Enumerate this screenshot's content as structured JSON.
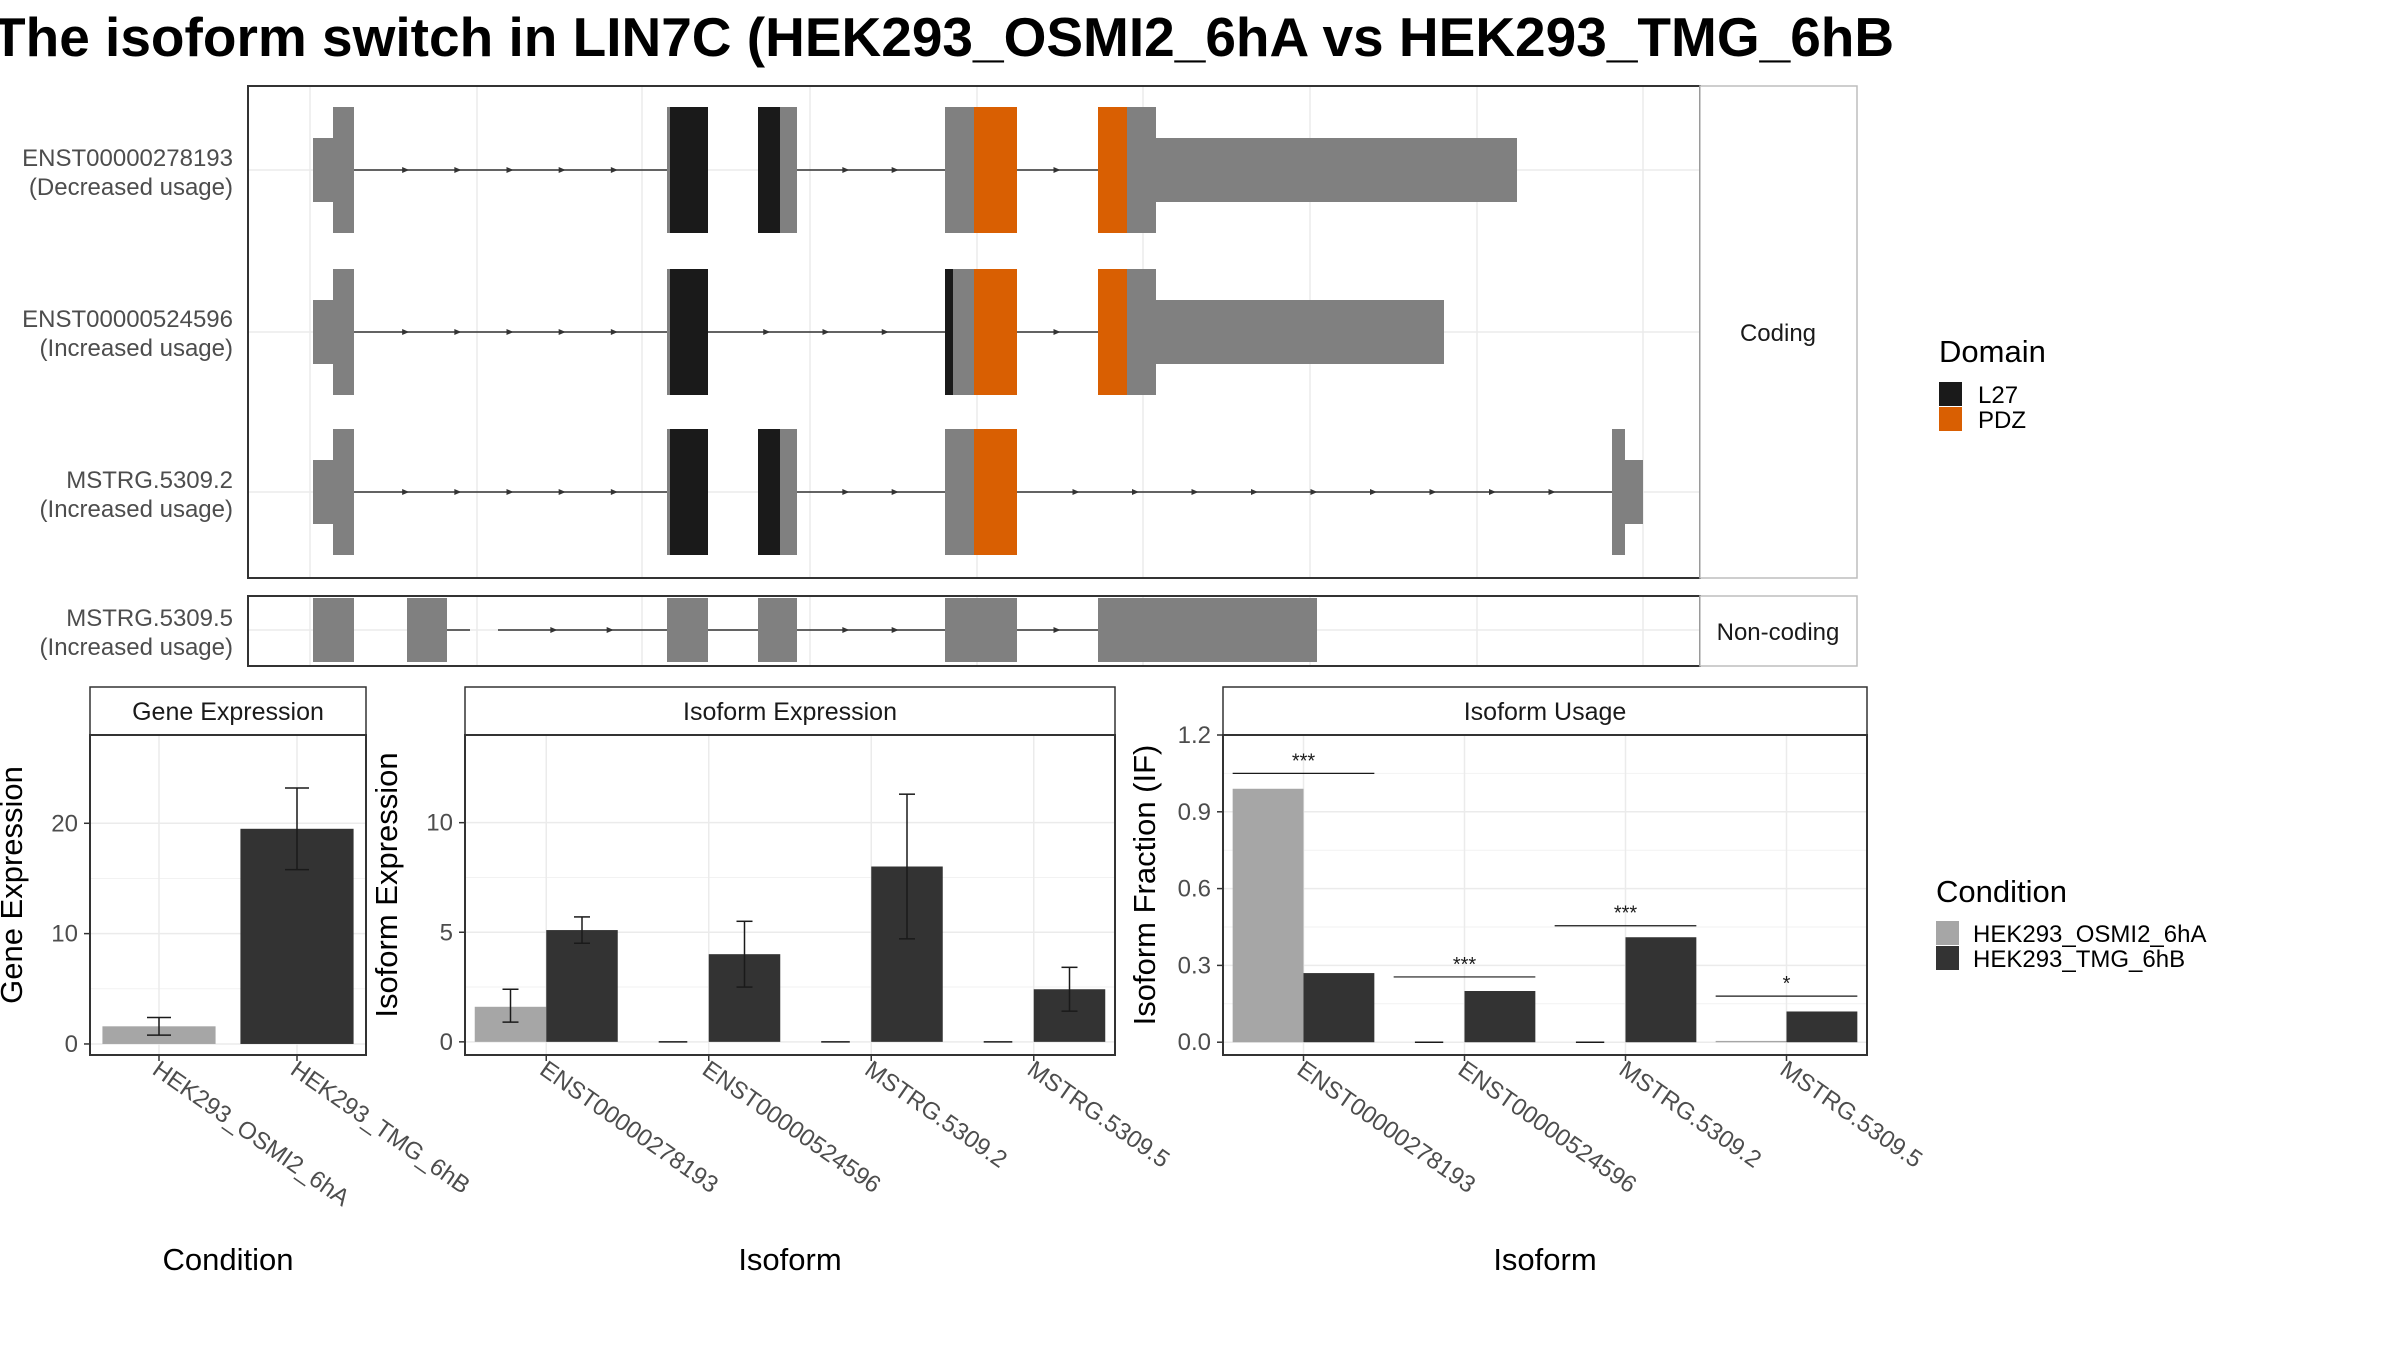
{
  "title": "The isoform switch in LIN7C (HEK293_OSMI2_6hA vs HEK293_TMG_6hB",
  "colors": {
    "exon": "#808080",
    "L27": "#1a1a1a",
    "PDZ": "#d95f02",
    "cond1": "#a6a6a6",
    "cond2": "#333333",
    "grid": "#ebebeb",
    "panel_border": "#333333",
    "strip_border": "#bdbdbd"
  },
  "structure": {
    "facets": [
      "Coding",
      "Non-coding"
    ],
    "transcripts": [
      {
        "id": "ENST00000278193",
        "usage": "(Decreased usage)",
        "facet": "Coding"
      },
      {
        "id": "ENST00000524596",
        "usage": "(Increased usage)",
        "facet": "Coding"
      },
      {
        "id": "MSTRG.5309.2",
        "usage": "(Increased usage)",
        "facet": "Coding"
      },
      {
        "id": "MSTRG.5309.5",
        "usage": "(Increased usage)",
        "facet": "Non-coding"
      }
    ],
    "legend_title": "Domain",
    "legend_items": [
      {
        "label": "L27",
        "color": "#1a1a1a"
      },
      {
        "label": "PDZ",
        "color": "#d95f02"
      }
    ]
  },
  "chart_data": [
    {
      "type": "bar",
      "strip": "Gene Expression",
      "xlabel": "Condition",
      "ylabel": "Gene Expression",
      "categories": [
        "HEK293_OSMI2_6hA",
        "HEK293_TMG_6hB"
      ],
      "ylim": [
        -1,
        28
      ],
      "yticks": [
        0,
        10,
        20
      ],
      "series": [
        {
          "name": "HEK293_OSMI2_6hA",
          "values": [
            1.6,
            null
          ],
          "errors": [
            [
              0.8,
              2.4
            ],
            null
          ]
        },
        {
          "name": "HEK293_TMG_6hB",
          "values": [
            null,
            19.5
          ],
          "errors": [
            null,
            [
              15.8,
              23.2
            ]
          ]
        }
      ]
    },
    {
      "type": "bar",
      "strip": "Isoform Expression",
      "xlabel": "Isoform",
      "ylabel": "Isoform Expression",
      "categories": [
        "ENST00000278193",
        "ENST00000524596",
        "MSTRG.5309.2",
        "MSTRG.5309.5"
      ],
      "ylim": [
        -0.6,
        14
      ],
      "yticks": [
        0,
        5,
        10
      ],
      "series": [
        {
          "name": "HEK293_OSMI2_6hA",
          "values": [
            1.6,
            0,
            0,
            0
          ],
          "errors": [
            [
              0.9,
              2.4
            ],
            null,
            null,
            null
          ]
        },
        {
          "name": "HEK293_TMG_6hB",
          "values": [
            5.1,
            4.0,
            8.0,
            2.4
          ],
          "errors": [
            [
              4.5,
              5.7
            ],
            [
              2.5,
              5.5
            ],
            [
              4.7,
              11.3
            ],
            [
              1.4,
              3.4
            ]
          ]
        }
      ]
    },
    {
      "type": "bar",
      "strip": "Isoform Usage",
      "xlabel": "Isoform",
      "ylabel": "Isoform Fraction (IF)",
      "categories": [
        "ENST00000278193",
        "ENST00000524596",
        "MSTRG.5309.2",
        "MSTRG.5309.5"
      ],
      "ylim": [
        -0.05,
        1.2
      ],
      "yticks": [
        0.0,
        0.3,
        0.6,
        0.9,
        1.2
      ],
      "ytick_labels": [
        "0.0",
        "0.3",
        "0.6",
        "0.9",
        "1.2"
      ],
      "series": [
        {
          "name": "HEK293_OSMI2_6hA",
          "values": [
            0.99,
            0,
            0,
            0.005
          ]
        },
        {
          "name": "HEK293_TMG_6hB",
          "values": [
            0.27,
            0.2,
            0.41,
            0.12
          ]
        }
      ],
      "significance": [
        {
          "label": "***",
          "y": 1.05
        },
        {
          "label": "***",
          "y": 0.255
        },
        {
          "label": "***",
          "y": 0.455
        },
        {
          "label": "*",
          "y": 0.18
        }
      ]
    }
  ],
  "condition_legend": {
    "title": "Condition",
    "items": [
      {
        "label": "HEK293_OSMI2_6hA",
        "color": "#a6a6a6"
      },
      {
        "label": "HEK293_TMG_6hB",
        "color": "#333333"
      }
    ]
  }
}
